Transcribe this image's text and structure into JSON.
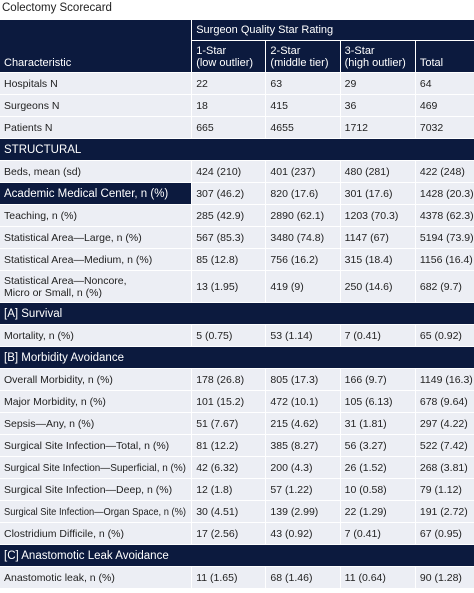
{
  "title": "Colectomy Scorecard",
  "header": {
    "group": "Surgeon Quality Star Rating",
    "characteristic": "Characteristic",
    "columns": [
      {
        "name": "1-Star",
        "note": "(low outlier)"
      },
      {
        "name": "2-Star",
        "note": "(middle tier)"
      },
      {
        "name": "3-Star",
        "note": "(high outlier)"
      },
      {
        "name": "Total"
      }
    ]
  },
  "rows": [
    {
      "label": "Hospitals N",
      "cells": [
        "22",
        "63",
        "29",
        "64"
      ]
    },
    {
      "label": "Surgeons N",
      "cells": [
        "18",
        "415",
        "36",
        "469"
      ]
    },
    {
      "label": "Patients N",
      "cells": [
        "665",
        "4655",
        "1712",
        "7032"
      ]
    },
    {
      "section": "STRUCTURAL"
    },
    {
      "label": "Beds, mean (sd)",
      "cells": [
        "424 (210)",
        "401 (237)",
        "480 (281)",
        "422 (248)"
      ]
    },
    {
      "label": "Academic Medical Center, n (%)",
      "highlight": true,
      "cells": [
        "307 (46.2)",
        "820 (17.6)",
        "301 (17.6)",
        "1428 (20.3)"
      ]
    },
    {
      "label": "Teaching, n (%)",
      "cells": [
        "285 (42.9)",
        "2890 (62.1)",
        "1203 (70.3)",
        "4378 (62.3)"
      ]
    },
    {
      "label": "Statistical Area—Large, n (%)",
      "cells": [
        "567 (85.3)",
        "3480 (74.8)",
        "1147 (67)",
        "5194 (73.9)"
      ]
    },
    {
      "label": "Statistical Area—Medium, n (%)",
      "cells": [
        "85 (12.8)",
        "756 (16.2)",
        "315 (18.4)",
        "1156 (16.4)"
      ]
    },
    {
      "label": [
        "Statistical Area—Noncore,",
        "Micro or Small, n (%)"
      ],
      "cells": [
        "13 (1.95)",
        "419 (9)",
        "250 (14.6)",
        "682 (9.7)"
      ]
    },
    {
      "section": "[A] Survival"
    },
    {
      "label": "Mortality, n (%)",
      "cells": [
        "5 (0.75)",
        "53 (1.14)",
        "7 (0.41)",
        "65 (0.92)"
      ]
    },
    {
      "section": "[B] Morbidity Avoidance"
    },
    {
      "label": "Overall Morbidity, n (%)",
      "cells": [
        "178 (26.8)",
        "805 (17.3)",
        "166 (9.7)",
        "1149 (16.3)"
      ]
    },
    {
      "label": "Major Morbidity, n (%)",
      "cells": [
        "101 (15.2)",
        "472 (10.1)",
        "105 (6.13)",
        "678 (9.64)"
      ]
    },
    {
      "label": "Sepsis—Any, n (%)",
      "cells": [
        "51 (7.67)",
        "215 (4.62)",
        "31 (1.81)",
        "297 (4.22)"
      ]
    },
    {
      "label": "Surgical Site Infection—Total, n (%)",
      "cells": [
        "81 (12.2)",
        "385 (8.27)",
        "56 (3.27)",
        "522 (7.42)"
      ]
    },
    {
      "label": "Surgical Site Infection—Superficial, n (%)",
      "cells": [
        "42 (6.32)",
        "200 (4.3)",
        "26 (1.52)",
        "268 (3.81)"
      ]
    },
    {
      "label": "Surgical Site Infection—Deep, n (%)",
      "cells": [
        "12 (1.8)",
        "57 (1.22)",
        "10 (0.58)",
        "79 (1.12)"
      ]
    },
    {
      "label": "Surgical Site Infection—Organ Space, n (%)",
      "cells": [
        "30 (4.51)",
        "139 (2.99)",
        "22 (1.29)",
        "191 (2.72)"
      ]
    },
    {
      "label": "Clostridium Difficile, n (%)",
      "cells": [
        "17 (2.56)",
        "43 (0.92)",
        "7 (0.41)",
        "67 (0.95)"
      ]
    },
    {
      "section": "[C] Anastomotic Leak Avoidance"
    },
    {
      "label": "Anastomotic leak, n (%)",
      "cells": [
        "11 (1.65)",
        "68 (1.46)",
        "11 (0.64)",
        "90 (1.28)"
      ]
    }
  ]
}
